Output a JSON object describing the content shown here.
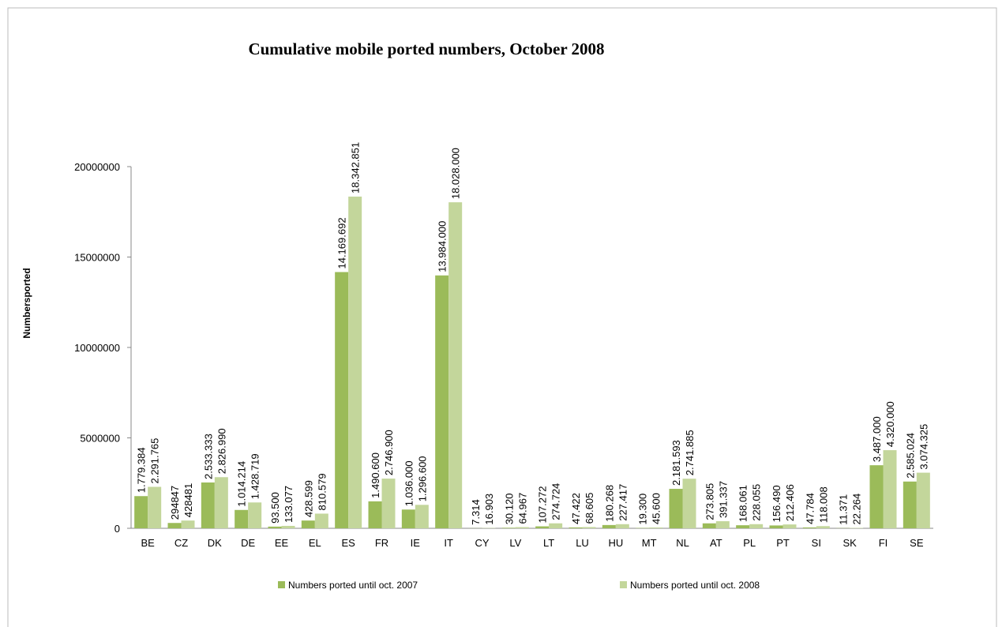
{
  "chart_data": {
    "type": "bar",
    "title": "Cumulative mobile ported numbers, October 2008",
    "y_label": "Numbersported",
    "categories": [
      "BE",
      "CZ",
      "DK",
      "DE",
      "EE",
      "EL",
      "ES",
      "FR",
      "IE",
      "IT",
      "CY",
      "LV",
      "LT",
      "LU",
      "HU",
      "MT",
      "NL",
      "AT",
      "PL",
      "PT",
      "SI",
      "SK",
      "FI",
      "SE"
    ],
    "series": [
      {
        "name": "Numbers ported until oct. 2007",
        "color": "#9bbb59",
        "values": [
          1779384,
          294847,
          2533333,
          1014214,
          93500,
          428599,
          14169692,
          1490600,
          1036000,
          13984000,
          7314,
          30120,
          107272,
          47422,
          180268,
          19300,
          2181593,
          273805,
          168061,
          156490,
          47784,
          11371,
          3487000,
          2585024
        ],
        "value_labels": [
          "1.779.384",
          "294847",
          "2.533.333",
          "1.014.214",
          "93.500",
          "428.599",
          "14.169.692",
          "1.490.600",
          "1.036.000",
          "13.984.000",
          "7.314",
          "30.120",
          "107.272",
          "47.422",
          "180.268",
          "19.300",
          "2.181.593",
          "273.805",
          "168.061",
          "156.490",
          "47.784",
          "11.371",
          "3.487.000",
          "2.585.024"
        ]
      },
      {
        "name": "Numbers ported until oct. 2008",
        "color": "#c3d69b",
        "values": [
          2291765,
          428481,
          2826990,
          1428719,
          133077,
          810579,
          18342851,
          2746900,
          1296600,
          18028000,
          16903,
          64967,
          274724,
          68605,
          227417,
          45600,
          2741885,
          391337,
          228055,
          212406,
          118008,
          22264,
          4320000,
          3074325
        ],
        "value_labels": [
          "2.291.765",
          "428481",
          "2.826.990",
          "1.428.719",
          "133.077",
          "810.579",
          "18.342.851",
          "2.746.900",
          "1.296.600",
          "18.028.000",
          "16.903",
          "64.967",
          "274.724",
          "68.605",
          "227.417",
          "45.600",
          "2.741.885",
          "391.337",
          "228.055",
          "212.406",
          "118.008",
          "22.264",
          "4.320.000",
          "3.074.325"
        ]
      }
    ],
    "ylim": [
      0,
      20000000
    ],
    "yticks": [
      0,
      5000000,
      10000000,
      15000000,
      20000000
    ],
    "legend": "bottom"
  }
}
